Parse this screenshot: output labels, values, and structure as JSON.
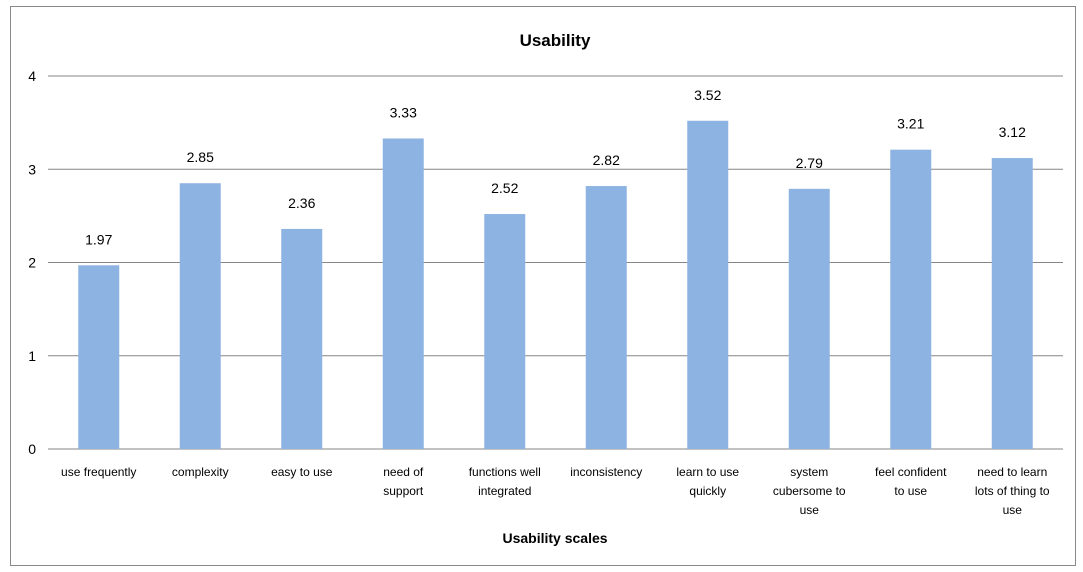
{
  "chart_data": {
    "type": "bar",
    "title": "Usability",
    "xlabel": "Usability scales",
    "ylabel": "",
    "ylim": [
      0,
      4
    ],
    "yticks": [
      0,
      1,
      2,
      3,
      4
    ],
    "grid": true,
    "legend": "none",
    "bar_color": "#8DB3E2",
    "categories": [
      "use frequently",
      "complexity",
      "easy to use",
      "need of support",
      "functions well integrated",
      "inconsistency",
      "learn to use quickly",
      "system cubersome to use",
      "feel confident to use",
      "need to learn lots of thing to use"
    ],
    "category_lines": [
      [
        "use frequently"
      ],
      [
        "complexity"
      ],
      [
        "easy to use"
      ],
      [
        "need of",
        "support"
      ],
      [
        "functions well",
        "integrated"
      ],
      [
        "inconsistency"
      ],
      [
        "learn to use",
        "quickly"
      ],
      [
        "system",
        "cubersome to",
        "use"
      ],
      [
        "feel confident",
        "to use"
      ],
      [
        "need to learn",
        "lots of thing to",
        "use"
      ]
    ],
    "values": [
      1.97,
      2.85,
      2.36,
      3.33,
      2.52,
      2.82,
      3.52,
      2.79,
      3.21,
      3.12
    ],
    "data_labels": [
      "1.97",
      "2.85",
      "2.36",
      "3.33",
      "2.52",
      "2.82",
      "3.52",
      "2.79",
      "3.21",
      "3.12"
    ]
  }
}
